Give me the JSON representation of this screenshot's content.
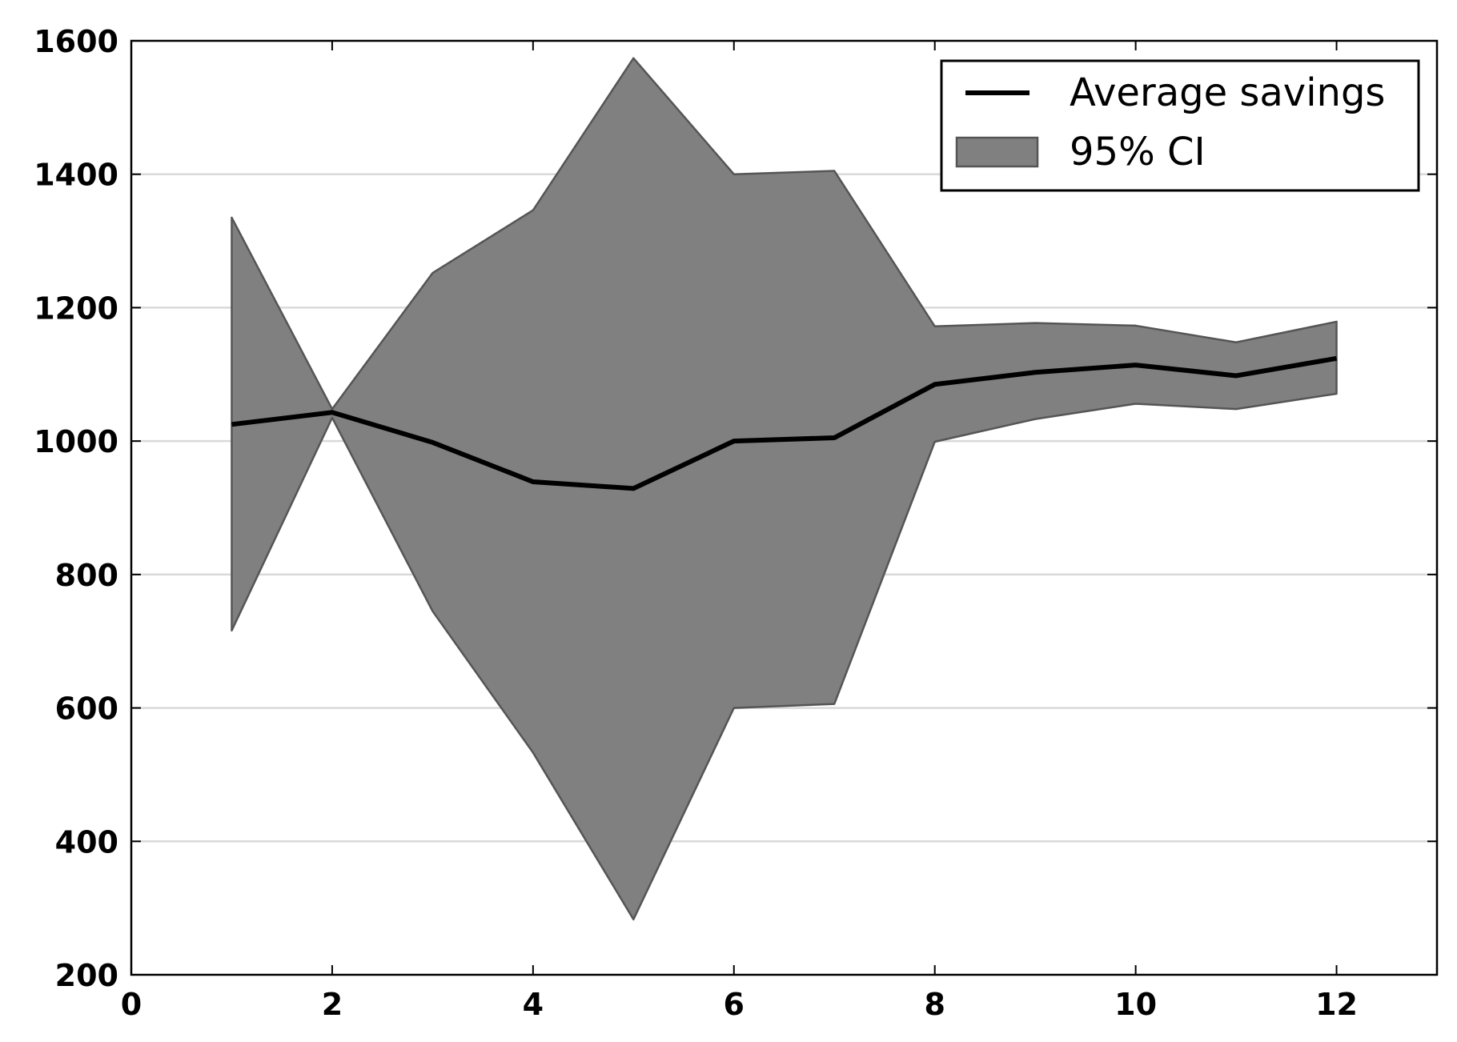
{
  "chart_data": {
    "type": "line",
    "title": "",
    "xlabel": "",
    "ylabel": "",
    "xlim": [
      0,
      13
    ],
    "ylim": [
      200,
      1600
    ],
    "x_ticks": [
      0,
      2,
      4,
      6,
      8,
      10,
      12
    ],
    "y_ticks": [
      200,
      400,
      600,
      800,
      1000,
      1200,
      1400,
      1600
    ],
    "grid": "horizontal",
    "legend_position": "top-right",
    "series": [
      {
        "name": "Average savings",
        "kind": "line",
        "color": "#000000",
        "x": [
          1,
          2,
          3,
          4,
          5,
          6,
          7,
          8,
          9,
          10,
          11,
          12
        ],
        "values": [
          1025,
          1043,
          998,
          939,
          929,
          1000,
          1005,
          1085,
          1103,
          1114,
          1098,
          1124
        ]
      },
      {
        "name": "95% CI",
        "kind": "band",
        "color": "#808080",
        "x": [
          1,
          2,
          3,
          4,
          5,
          6,
          7,
          8,
          9,
          10,
          11,
          12
        ],
        "upper": [
          1335,
          1048,
          1252,
          1346,
          1574,
          1400,
          1405,
          1172,
          1177,
          1173,
          1148,
          1179
        ],
        "lower": [
          716,
          1035,
          745,
          533,
          283,
          600,
          606,
          999,
          1033,
          1056,
          1048,
          1071
        ]
      }
    ]
  }
}
